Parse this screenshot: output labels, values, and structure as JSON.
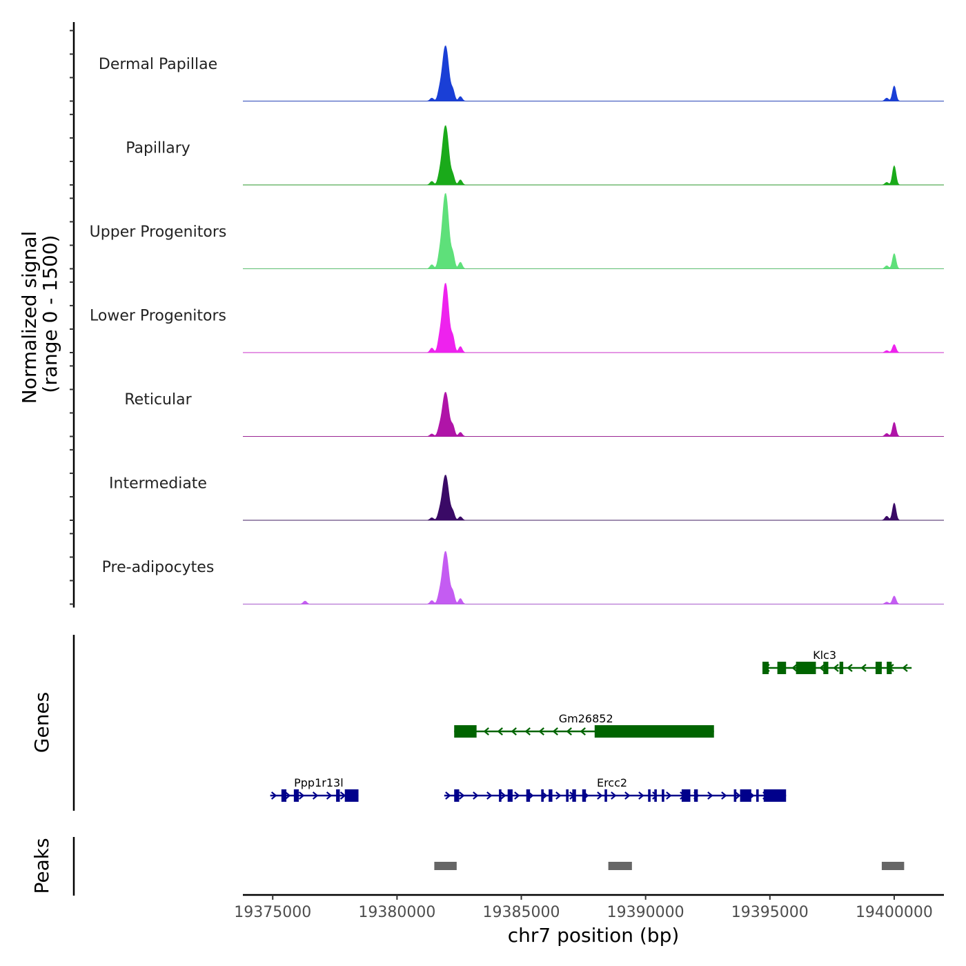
{
  "chart_data": {
    "type": "area",
    "title": "",
    "xlabel": "chr7 position (bp)",
    "ylabel_line1": "Normalized signal",
    "ylabel_line2": "(range 0 - 1500)",
    "ylim": [
      0,
      1500
    ],
    "xlim": [
      19373800,
      19402000
    ],
    "x_ticks": [
      19375000,
      19380000,
      19385000,
      19390000,
      19395000,
      19400000
    ],
    "x_tick_labels": [
      "19375000",
      "19380000",
      "19385000",
      "19390000",
      "19395000",
      "19400000"
    ],
    "coverage_tracks": [
      {
        "name": "Dermal Papillae",
        "color": "#1a3fd6",
        "peaks": [
          {
            "center": 19381950,
            "height": 1100
          },
          {
            "center": 19381700,
            "height": 120
          },
          {
            "center": 19382250,
            "height": 180
          },
          {
            "center": 19382550,
            "height": 90
          },
          {
            "center": 19381400,
            "height": 60
          },
          {
            "center": 19400000,
            "height": 300
          },
          {
            "center": 19399700,
            "height": 60
          }
        ]
      },
      {
        "name": "Papillary",
        "color": "#1aaa1a",
        "peaks": [
          {
            "center": 19381950,
            "height": 1180
          },
          {
            "center": 19381700,
            "height": 100
          },
          {
            "center": 19382250,
            "height": 150
          },
          {
            "center": 19382550,
            "height": 100
          },
          {
            "center": 19381400,
            "height": 70
          },
          {
            "center": 19400000,
            "height": 380
          },
          {
            "center": 19399700,
            "height": 50
          }
        ]
      },
      {
        "name": "Upper Progenitors",
        "color": "#5ee07a",
        "peaks": [
          {
            "center": 19381950,
            "height": 1500
          },
          {
            "center": 19381700,
            "height": 140
          },
          {
            "center": 19382250,
            "height": 240
          },
          {
            "center": 19382550,
            "height": 130
          },
          {
            "center": 19381400,
            "height": 80
          },
          {
            "center": 19400000,
            "height": 300
          },
          {
            "center": 19399700,
            "height": 60
          }
        ]
      },
      {
        "name": "Lower Progenitors",
        "color": "#ee22ee",
        "peaks": [
          {
            "center": 19381950,
            "height": 1380
          },
          {
            "center": 19381700,
            "height": 160
          },
          {
            "center": 19382250,
            "height": 260
          },
          {
            "center": 19382550,
            "height": 120
          },
          {
            "center": 19381400,
            "height": 90
          },
          {
            "center": 19400000,
            "height": 160
          },
          {
            "center": 19399700,
            "height": 40
          }
        ]
      },
      {
        "name": "Reticular",
        "color": "#b014a8",
        "peaks": [
          {
            "center": 19381950,
            "height": 880
          },
          {
            "center": 19381700,
            "height": 100
          },
          {
            "center": 19382250,
            "height": 180
          },
          {
            "center": 19382550,
            "height": 80
          },
          {
            "center": 19381400,
            "height": 50
          },
          {
            "center": 19400000,
            "height": 280
          },
          {
            "center": 19399700,
            "height": 60
          }
        ]
      },
      {
        "name": "Intermediate",
        "color": "#3a0a66",
        "peaks": [
          {
            "center": 19381950,
            "height": 900
          },
          {
            "center": 19381700,
            "height": 90
          },
          {
            "center": 19382250,
            "height": 140
          },
          {
            "center": 19382550,
            "height": 70
          },
          {
            "center": 19381400,
            "height": 50
          },
          {
            "center": 19400000,
            "height": 340
          },
          {
            "center": 19399700,
            "height": 80
          }
        ]
      },
      {
        "name": "Pre-adipocytes",
        "color": "#c45cf2",
        "peaks": [
          {
            "center": 19381950,
            "height": 1050
          },
          {
            "center": 19381700,
            "height": 110
          },
          {
            "center": 19382250,
            "height": 200
          },
          {
            "center": 19382550,
            "height": 110
          },
          {
            "center": 19381400,
            "height": 70
          },
          {
            "center": 19376300,
            "height": 60
          },
          {
            "center": 19400000,
            "height": 160
          },
          {
            "center": 19399700,
            "height": 40
          }
        ]
      }
    ],
    "genes_panel_label": "Genes",
    "genes": [
      {
        "name": "Klc3",
        "strand": "-",
        "color": "#006400",
        "row": 0,
        "start": 19394700,
        "end": 19400700,
        "label_pos": 19397200,
        "exons": [
          [
            19394700,
            19394950
          ],
          [
            19395300,
            19395650
          ],
          [
            19396050,
            19396850
          ],
          [
            19397150,
            19397350
          ],
          [
            19397800,
            19397950
          ],
          [
            19399250,
            19399500
          ],
          [
            19399700,
            19399900
          ]
        ]
      },
      {
        "name": "Gm26852",
        "strand": "-",
        "color": "#006400",
        "row": 1,
        "start": 19382300,
        "end": 19392750,
        "label_pos": 19387600,
        "exons": [
          [
            19382300,
            19383200
          ],
          [
            19387950,
            19392750
          ]
        ]
      },
      {
        "name": "Ppp1r13l",
        "strand": "+",
        "color": "#00008b",
        "row": 2,
        "start": 19374900,
        "end": 19378450,
        "label_pos": 19376850,
        "exons": [
          [
            19375350,
            19375550
          ],
          [
            19375850,
            19376050
          ],
          [
            19377550,
            19377700
          ],
          [
            19377900,
            19378450
          ]
        ]
      },
      {
        "name": "Ercc2",
        "strand": "+",
        "color": "#00008b",
        "row": 2,
        "start": 19381900,
        "end": 19395650,
        "label_pos": 19388650,
        "exons": [
          [
            19382300,
            19382500
          ],
          [
            19384100,
            19384200
          ],
          [
            19384450,
            19384650
          ],
          [
            19385200,
            19385350
          ],
          [
            19385800,
            19385900
          ],
          [
            19386100,
            19386250
          ],
          [
            19386800,
            19386900
          ],
          [
            19387050,
            19387200
          ],
          [
            19387450,
            19387600
          ],
          [
            19388350,
            19388450
          ],
          [
            19390100,
            19390200
          ],
          [
            19390350,
            19390450
          ],
          [
            19390650,
            19390750
          ],
          [
            19391450,
            19391800
          ],
          [
            19391950,
            19392100
          ],
          [
            19393550,
            19393650
          ],
          [
            19393800,
            19394250
          ],
          [
            19394450,
            19394550
          ],
          [
            19394750,
            19395650
          ]
        ]
      }
    ],
    "peaks_panel_label": "Peaks",
    "peak_regions": [
      [
        19381500,
        19382400
      ],
      [
        19388500,
        19389450
      ],
      [
        19399500,
        19400400
      ]
    ]
  }
}
